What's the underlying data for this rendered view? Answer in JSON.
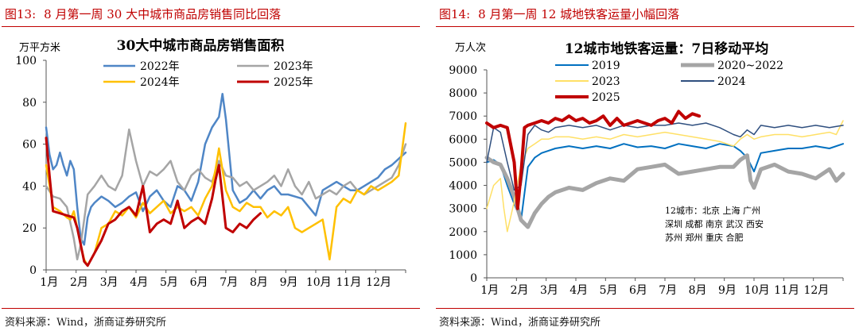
{
  "chart_data": [
    {
      "type": "line",
      "figure_label": "图13:",
      "figure_title": "8 月第一周 30 大中城市商品房销售同比回落",
      "title": "30大中城市商品房销售面积",
      "ylabel": "万平方米",
      "xlabel": "",
      "ylim": [
        0,
        100
      ],
      "yticks": [
        "0",
        "20",
        "40",
        "60",
        "80",
        "100"
      ],
      "xlim": [
        0,
        52
      ],
      "xticks": [
        "1月",
        "2月",
        "3月",
        "4月",
        "5月",
        "6月",
        "7月",
        "8月",
        "9月",
        "10月",
        "11月",
        "12月"
      ],
      "legend": "top",
      "source": "资料来源：Wind，浙商证券研究所",
      "series": [
        {
          "name": "2022年",
          "color": "#4f86c6",
          "width": 2.5,
          "x": [
            0,
            0.5,
            1,
            1.5,
            2,
            2.5,
            3,
            3.5,
            4,
            4.5,
            5,
            5.5,
            6,
            6.5,
            7,
            8,
            9,
            10,
            11,
            12,
            13,
            14,
            15,
            16,
            17,
            18,
            19,
            20,
            21,
            22,
            23,
            24,
            25,
            25.5,
            26,
            27,
            28,
            29,
            30,
            31,
            32,
            33,
            34,
            35,
            36,
            37,
            38,
            39,
            40,
            41,
            42,
            43,
            44,
            45,
            46,
            47,
            48,
            49,
            50,
            51,
            52
          ],
          "values": [
            68,
            55,
            48,
            50,
            56,
            50,
            45,
            52,
            48,
            30,
            15,
            12,
            25,
            30,
            32,
            35,
            33,
            30,
            32,
            35,
            37,
            28,
            35,
            38,
            33,
            30,
            40,
            38,
            33,
            42,
            60,
            68,
            73,
            84,
            72,
            38,
            32,
            34,
            38,
            34,
            38,
            40,
            36,
            36,
            35,
            34,
            30,
            26,
            38,
            40,
            42,
            40,
            38,
            38,
            40,
            42,
            44,
            48,
            50,
            53,
            56
          ]
        },
        {
          "name": "2023年",
          "color": "#a5a5a5",
          "width": 2.5,
          "x": [
            0,
            1,
            2,
            3,
            4,
            4.5,
            5,
            6,
            7,
            8,
            9,
            10,
            11,
            12,
            13,
            14,
            15,
            16,
            17,
            18,
            19,
            20,
            21,
            22,
            23,
            24,
            25,
            26,
            27,
            28,
            29,
            30,
            31,
            32,
            33,
            34,
            35,
            36,
            37,
            38,
            39,
            40,
            41,
            42,
            43,
            44,
            45,
            46,
            47,
            48,
            49,
            50,
            51,
            52
          ],
          "values": [
            40,
            35,
            34,
            30,
            15,
            5,
            12,
            36,
            40,
            45,
            40,
            38,
            45,
            67,
            52,
            40,
            47,
            45,
            48,
            52,
            42,
            38,
            45,
            48,
            44,
            42,
            52,
            45,
            44,
            40,
            42,
            38,
            40,
            42,
            45,
            40,
            48,
            40,
            36,
            42,
            34,
            36,
            38,
            36,
            40,
            42,
            38,
            36,
            38,
            40,
            42,
            44,
            50,
            60
          ]
        },
        {
          "name": "2024年",
          "color": "#ffc000",
          "width": 2.5,
          "x": [
            0,
            1,
            2,
            3,
            3.5,
            4,
            4.5,
            5,
            5.5,
            6,
            7,
            8,
            9,
            10,
            11,
            12,
            13,
            14,
            15,
            16,
            17,
            18,
            19,
            20,
            21,
            22,
            23,
            24,
            24.5,
            25,
            26,
            27,
            28,
            29,
            30,
            31,
            32,
            33,
            34,
            35,
            36,
            37,
            38,
            39,
            40,
            41,
            42,
            43,
            44,
            45,
            46,
            47,
            48,
            49,
            50,
            51,
            52
          ],
          "values": [
            50,
            30,
            28,
            25,
            24,
            28,
            20,
            12,
            5,
            2,
            8,
            20,
            22,
            28,
            26,
            30,
            25,
            32,
            27,
            30,
            33,
            27,
            30,
            28,
            30,
            26,
            34,
            40,
            48,
            58,
            38,
            30,
            28,
            32,
            30,
            30,
            25,
            28,
            26,
            30,
            20,
            18,
            20,
            22,
            24,
            5,
            30,
            34,
            32,
            38,
            36,
            40,
            38,
            40,
            42,
            45,
            70
          ]
        },
        {
          "name": "2025年",
          "color": "#c00000",
          "width": 3,
          "x": [
            0,
            0.5,
            1,
            2,
            3,
            4,
            4.5,
            5,
            5.5,
            6,
            7,
            8,
            9,
            10,
            11,
            12,
            13,
            14,
            15,
            16,
            17,
            18,
            19,
            20,
            21,
            22,
            23,
            24,
            24.5,
            25,
            26,
            27,
            28,
            29,
            30,
            31
          ],
          "values": [
            63,
            45,
            28,
            27,
            26,
            25,
            20,
            12,
            4,
            2,
            8,
            14,
            22,
            24,
            28,
            30,
            26,
            40,
            18,
            22,
            24,
            22,
            33,
            20,
            23,
            25,
            22,
            34,
            43,
            50,
            20,
            18,
            22,
            20,
            24,
            27
          ]
        }
      ]
    },
    {
      "type": "line",
      "figure_label": "图14:",
      "figure_title": "8 月第一周 12 城地铁客运量小幅回落",
      "title": "12城市地铁客运量：7日移动平均",
      "ylabel": "万人次",
      "xlabel": "",
      "ylim": [
        0,
        9000
      ],
      "yticks": [
        "0",
        "1000",
        "2000",
        "3000",
        "4000",
        "5000",
        "6000",
        "7000",
        "8000",
        "9000"
      ],
      "xlim": [
        0,
        52
      ],
      "xticks": [
        "1月",
        "2月",
        "3月",
        "4月",
        "5月",
        "6月",
        "7月",
        "8月",
        "9月",
        "10月",
        "11月",
        "12月"
      ],
      "legend": "top",
      "annotation": [
        "12城市：北京 上海 广州",
        "深圳 成都 南京 武汉 西安",
        "苏州 郑州 重庆 合肥"
      ],
      "source": "资料来源：Wind，浙商证券研究所",
      "series": [
        {
          "name": "2019",
          "color": "#0070c0",
          "width": 2,
          "x": [
            0,
            1,
            2,
            3,
            4,
            5,
            6,
            7,
            8,
            9,
            10,
            12,
            14,
            16,
            18,
            20,
            22,
            24,
            26,
            28,
            30,
            32,
            34,
            36,
            37,
            38,
            39,
            40,
            42,
            44,
            46,
            48,
            50,
            52
          ],
          "values": [
            5000,
            5100,
            4900,
            4000,
            3200,
            2500,
            4800,
            5200,
            5400,
            5500,
            5600,
            5700,
            5600,
            5700,
            5600,
            5800,
            5650,
            5700,
            5600,
            5800,
            5700,
            5600,
            5800,
            5700,
            5500,
            5200,
            4600,
            5400,
            5500,
            5600,
            5600,
            5700,
            5600,
            5800
          ]
        },
        {
          "name": "2020~2022",
          "color": "#a5a5a5",
          "width": 5,
          "x": [
            0,
            1,
            2,
            3,
            4,
            5,
            6,
            7,
            8,
            9,
            10,
            12,
            14,
            16,
            18,
            20,
            22,
            24,
            26,
            28,
            30,
            32,
            34,
            36,
            37,
            38,
            38.5,
            39,
            39.5,
            40,
            42,
            44,
            46,
            48,
            50,
            51,
            52
          ],
          "values": [
            5200,
            5000,
            4900,
            4300,
            3500,
            2500,
            2200,
            2800,
            3200,
            3500,
            3700,
            3900,
            3800,
            4100,
            4300,
            4200,
            4700,
            4800,
            4900,
            4500,
            4600,
            4700,
            4800,
            4800,
            5100,
            5300,
            4200,
            3900,
            4300,
            4700,
            4900,
            4600,
            4500,
            4300,
            4700,
            4200,
            4500
          ]
        },
        {
          "name": "2023",
          "color": "#ffe066",
          "width": 1.5,
          "x": [
            0,
            1,
            2,
            2.5,
            3,
            4,
            5,
            6,
            7,
            8,
            9,
            10,
            12,
            14,
            16,
            18,
            20,
            22,
            24,
            26,
            28,
            30,
            32,
            34,
            36,
            37,
            38,
            39,
            40,
            42,
            44,
            46,
            48,
            50,
            51,
            52
          ],
          "values": [
            3000,
            4000,
            4300,
            3000,
            2000,
            3300,
            4900,
            5600,
            5800,
            6000,
            6000,
            6100,
            6100,
            6000,
            6100,
            6000,
            6200,
            6100,
            6200,
            6300,
            6200,
            6100,
            6000,
            5900,
            5700,
            6000,
            6200,
            6000,
            6100,
            6200,
            6200,
            6100,
            6200,
            6300,
            6200,
            6800
          ]
        },
        {
          "name": "2024",
          "color": "#2f4f7f",
          "width": 1.5,
          "x": [
            0,
            1,
            2,
            3,
            4,
            5,
            6,
            7,
            8,
            9,
            10,
            12,
            14,
            16,
            18,
            20,
            22,
            24,
            26,
            28,
            30,
            32,
            34,
            36,
            37,
            38,
            39,
            40,
            42,
            44,
            46,
            48,
            50,
            52
          ],
          "values": [
            5000,
            6500,
            6300,
            5000,
            3800,
            4000,
            6200,
            6600,
            6400,
            6300,
            6500,
            6600,
            6500,
            6600,
            6400,
            6600,
            6500,
            6600,
            6600,
            6700,
            6600,
            6700,
            6500,
            6200,
            6100,
            6400,
            6200,
            6600,
            6500,
            6600,
            6500,
            6600,
            6500,
            6600
          ]
        },
        {
          "name": "2025",
          "color": "#c00000",
          "width": 4,
          "x": [
            0,
            1,
            2,
            3,
            4,
            4.5,
            5,
            5.5,
            6,
            7,
            8,
            9,
            10,
            11,
            12,
            13,
            14,
            15,
            16,
            17,
            18,
            19,
            20,
            21,
            22,
            23,
            24,
            25,
            26,
            27,
            28,
            29,
            30,
            31
          ],
          "values": [
            6700,
            6500,
            6600,
            6500,
            5000,
            3000,
            4500,
            6500,
            6600,
            6700,
            6800,
            6700,
            6900,
            6800,
            7000,
            6800,
            6900,
            6700,
            6800,
            7000,
            6600,
            6900,
            6600,
            6700,
            6800,
            6700,
            6600,
            6800,
            6900,
            6700,
            7200,
            6900,
            7100,
            7000
          ]
        }
      ]
    }
  ]
}
